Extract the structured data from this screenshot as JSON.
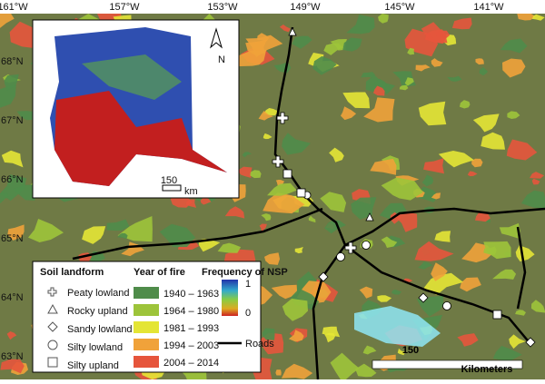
{
  "map": {
    "lon_labels": [
      "161°W",
      "157°W",
      "153°W",
      "149°W",
      "145°W",
      "141°W"
    ],
    "lat_labels": [
      "68°N",
      "67°N",
      "66°N",
      "65°N",
      "64°N",
      "63°N"
    ],
    "scale_bar": {
      "distance": "150",
      "unit": "Kilometers"
    },
    "inset": {
      "north": "N",
      "distance": "150",
      "unit": "km"
    },
    "legend": {
      "soil_title": "Soil landform",
      "soil": [
        "Peaty lowland",
        "Rocky upland",
        "Sandy lowland",
        "Silty lowland",
        "Silty upland"
      ],
      "fire_title": "Year of fire",
      "fire": [
        {
          "label": "1940 – 1963",
          "color": "#4f8c4a"
        },
        {
          "label": "1964 – 1980",
          "color": "#9dc43a"
        },
        {
          "label": "1981 – 1993",
          "color": "#e4e535"
        },
        {
          "label": "1994 – 2003",
          "color": "#f0a23a"
        },
        {
          "label": "2004 – 2014",
          "color": "#e6553c"
        }
      ],
      "nsp_title": "Frequency of NSP",
      "nsp_high": "1",
      "nsp_low": "0",
      "roads": "Roads"
    }
  }
}
